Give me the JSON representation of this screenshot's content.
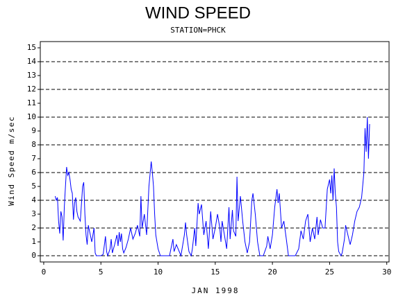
{
  "chart_data": {
    "type": "line",
    "title": "WIND SPEED",
    "subtitle": "STATION=PHCK",
    "x_label": "JAN 1998",
    "y_label": "Wind Speed m/sec",
    "xlim": [
      -0.3,
      30.2
    ],
    "ylim": [
      -0.45,
      15.45
    ],
    "xticks": [
      0,
      5,
      10,
      15,
      20,
      25,
      30
    ],
    "yticks": [
      0,
      1,
      2,
      3,
      4,
      5,
      6,
      7,
      8,
      9,
      10,
      11,
      12,
      13,
      14,
      15
    ],
    "grid_values": [
      0,
      2,
      4,
      6,
      8,
      10,
      12,
      14
    ],
    "x": [
      1.0,
      1.1,
      1.2,
      1.3,
      1.4,
      1.5,
      1.6,
      1.7,
      1.8,
      1.9,
      2.0,
      2.1,
      2.2,
      2.3,
      2.4,
      2.5,
      2.6,
      2.7,
      2.8,
      2.9,
      3.0,
      3.2,
      3.4,
      3.5,
      3.6,
      3.7,
      3.8,
      3.9,
      4.0,
      4.2,
      4.4,
      4.5,
      4.6,
      5.0,
      5.2,
      5.4,
      5.5,
      5.6,
      5.8,
      5.9,
      6.0,
      6.2,
      6.4,
      6.5,
      6.6,
      6.7,
      6.8,
      6.9,
      7.0,
      7.2,
      7.4,
      7.6,
      7.8,
      8.0,
      8.2,
      8.4,
      8.5,
      8.6,
      8.8,
      9.0,
      9.2,
      9.4,
      9.5,
      9.6,
      9.7,
      9.8,
      10.0,
      10.2,
      10.5,
      11.0,
      11.3,
      11.4,
      11.6,
      12.0,
      12.3,
      12.4,
      12.5,
      12.7,
      12.9,
      13.0,
      13.2,
      13.3,
      13.5,
      13.6,
      13.8,
      14.0,
      14.2,
      14.4,
      14.6,
      14.8,
      15.0,
      15.2,
      15.4,
      15.5,
      15.6,
      15.8,
      16.0,
      16.2,
      16.3,
      16.5,
      16.6,
      16.8,
      16.9,
      17.0,
      17.2,
      17.4,
      17.6,
      17.8,
      18.0,
      18.2,
      18.3,
      18.5,
      18.7,
      18.9,
      19.2,
      19.5,
      19.6,
      19.8,
      20.0,
      20.2,
      20.4,
      20.5,
      20.6,
      20.8,
      21.0,
      21.2,
      21.4,
      22.0,
      22.3,
      22.5,
      22.7,
      22.9,
      23.1,
      23.3,
      23.5,
      23.7,
      23.9,
      24.0,
      24.2,
      24.4,
      24.6,
      24.8,
      25.0,
      25.1,
      25.2,
      25.3,
      25.4,
      25.5,
      25.6,
      25.7,
      25.8,
      26.0,
      26.1,
      26.3,
      26.4,
      26.6,
      26.8,
      27.0,
      27.2,
      27.4,
      27.6,
      27.8,
      28.0,
      28.1,
      28.2,
      28.3,
      28.4,
      28.5
    ],
    "series": [
      {
        "name": "Wind Speed",
        "color": "#0000ff",
        "values": [
          4.3,
          4.0,
          4.2,
          2.5,
          1.6,
          3.2,
          2.8,
          1.1,
          3.5,
          5.0,
          6.4,
          5.8,
          6.0,
          5.5,
          4.8,
          4.5,
          2.6,
          3.8,
          4.2,
          3.2,
          2.8,
          2.5,
          5.0,
          5.3,
          3.0,
          1.5,
          0.8,
          2.2,
          1.8,
          1.0,
          2.0,
          0.2,
          0,
          0,
          0.1,
          1.4,
          0.3,
          0,
          0.5,
          1.2,
          0.2,
          0.8,
          1.5,
          0.7,
          1.7,
          1.0,
          1.6,
          0.5,
          0.2,
          0.6,
          1.2,
          2.0,
          1.2,
          1.6,
          2.2,
          1.4,
          4.3,
          2.0,
          3.0,
          1.5,
          5.0,
          6.8,
          6.0,
          5.0,
          3.0,
          1.5,
          0.5,
          0,
          0,
          0,
          1.2,
          0.3,
          0.8,
          0,
          1.5,
          2.4,
          1.5,
          0.3,
          0,
          0.5,
          2.0,
          0.7,
          3.8,
          3.0,
          3.7,
          1.5,
          2.5,
          0.5,
          3.2,
          1.2,
          2.0,
          3.0,
          2.0,
          1.0,
          2.5,
          1.5,
          0.5,
          3.5,
          1.2,
          3.3,
          1.8,
          1.4,
          5.7,
          2.5,
          4.3,
          2.5,
          1.0,
          0.2,
          1.0,
          4.0,
          4.5,
          3.0,
          1.0,
          0,
          0,
          0.7,
          1.4,
          0.5,
          1.5,
          3.5,
          4.8,
          3.8,
          4.5,
          2.0,
          2.5,
          1.3,
          0,
          0,
          0.5,
          1.8,
          1.2,
          2.5,
          3.0,
          1.0,
          2.0,
          1.2,
          2.8,
          1.5,
          2.6,
          2.0,
          2.0,
          4.8,
          5.5,
          4.5,
          5.8,
          4.0,
          6.3,
          4.5,
          3.5,
          1.0,
          0.3,
          0,
          0.2,
          1.2,
          2.2,
          1.5,
          0.8,
          1.5,
          2.5,
          3.2,
          3.5,
          4.2,
          6.0,
          9.2,
          7.5,
          10.0,
          7.0,
          9.5
        ]
      }
    ]
  }
}
